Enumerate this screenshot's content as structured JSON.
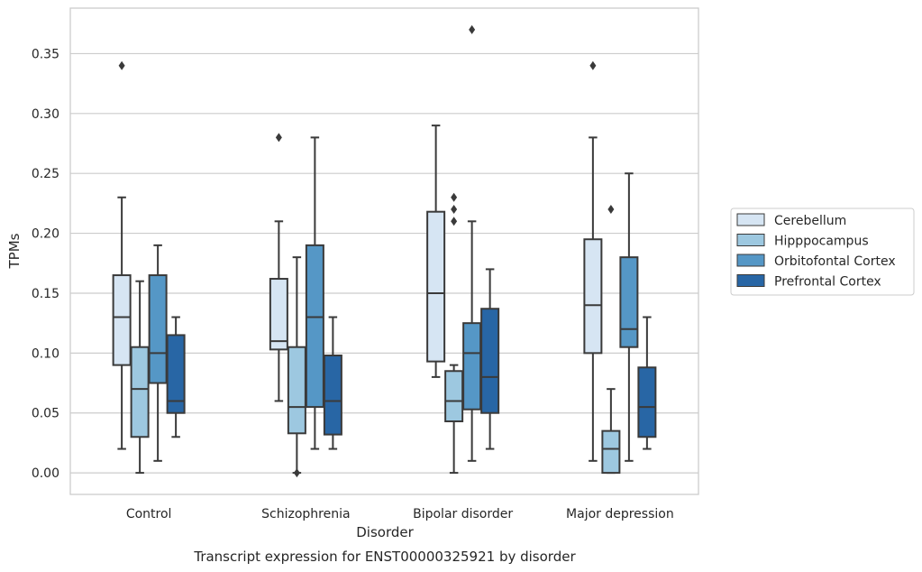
{
  "caption": "Transcript expression for ENST00000325921 by disorder",
  "chart_data": {
    "type": "boxplot",
    "xlabel": "Disorder",
    "ylabel": "TPMs",
    "ylim": [
      -0.018,
      0.388
    ],
    "yticks": [
      0.0,
      0.05,
      0.1,
      0.15,
      0.2,
      0.25,
      0.3,
      0.35
    ],
    "ytick_labels": [
      "0.00",
      "0.05",
      "0.10",
      "0.15",
      "0.20",
      "0.25",
      "0.30",
      "0.35"
    ],
    "categories": [
      "Control",
      "Schizophrenia",
      "Bipolar disorder",
      "Major depression"
    ],
    "grid": "horizontal",
    "legend_position": "right",
    "series": [
      {
        "name": "Cerebellum",
        "color": "#d6e5f3",
        "boxes": [
          {
            "whislo": 0.02,
            "q1": 0.09,
            "med": 0.13,
            "q3": 0.165,
            "whishi": 0.23,
            "fliers": [
              0.34
            ]
          },
          {
            "whislo": 0.06,
            "q1": 0.103,
            "med": 0.11,
            "q3": 0.162,
            "whishi": 0.21,
            "fliers": [
              0.28
            ]
          },
          {
            "whislo": 0.08,
            "q1": 0.093,
            "med": 0.15,
            "q3": 0.218,
            "whishi": 0.29,
            "fliers": []
          },
          {
            "whislo": 0.01,
            "q1": 0.1,
            "med": 0.14,
            "q3": 0.195,
            "whishi": 0.28,
            "fliers": [
              0.34
            ]
          }
        ]
      },
      {
        "name": "Hipppocampus",
        "color": "#9dc8e0",
        "boxes": [
          {
            "whislo": 0.0,
            "q1": 0.03,
            "med": 0.07,
            "q3": 0.105,
            "whishi": 0.16,
            "fliers": []
          },
          {
            "whislo": 0.0,
            "q1": 0.033,
            "med": 0.055,
            "q3": 0.105,
            "whishi": 0.18,
            "fliers": [
              0.0
            ]
          },
          {
            "whislo": 0.0,
            "q1": 0.043,
            "med": 0.06,
            "q3": 0.085,
            "whishi": 0.09,
            "fliers": [
              0.21,
              0.22,
              0.23
            ]
          },
          {
            "whislo": 0.0,
            "q1": 0.0,
            "med": 0.02,
            "q3": 0.035,
            "whishi": 0.07,
            "fliers": [
              0.22
            ]
          }
        ]
      },
      {
        "name": "Orbitofontal Cortex",
        "color": "#5597c6",
        "boxes": [
          {
            "whislo": 0.01,
            "q1": 0.075,
            "med": 0.1,
            "q3": 0.165,
            "whishi": 0.19,
            "fliers": []
          },
          {
            "whislo": 0.02,
            "q1": 0.055,
            "med": 0.13,
            "q3": 0.19,
            "whishi": 0.28,
            "fliers": []
          },
          {
            "whislo": 0.01,
            "q1": 0.053,
            "med": 0.1,
            "q3": 0.125,
            "whishi": 0.21,
            "fliers": [
              0.37
            ]
          },
          {
            "whislo": 0.01,
            "q1": 0.105,
            "med": 0.12,
            "q3": 0.18,
            "whishi": 0.25,
            "fliers": []
          }
        ]
      },
      {
        "name": "Prefrontal Cortex",
        "color": "#2866a5",
        "boxes": [
          {
            "whislo": 0.03,
            "q1": 0.05,
            "med": 0.06,
            "q3": 0.115,
            "whishi": 0.13,
            "fliers": []
          },
          {
            "whislo": 0.02,
            "q1": 0.032,
            "med": 0.06,
            "q3": 0.098,
            "whishi": 0.13,
            "fliers": []
          },
          {
            "whislo": 0.02,
            "q1": 0.05,
            "med": 0.08,
            "q3": 0.137,
            "whishi": 0.17,
            "fliers": []
          },
          {
            "whislo": 0.02,
            "q1": 0.03,
            "med": 0.055,
            "q3": 0.088,
            "whishi": 0.13,
            "fliers": []
          }
        ]
      }
    ]
  }
}
